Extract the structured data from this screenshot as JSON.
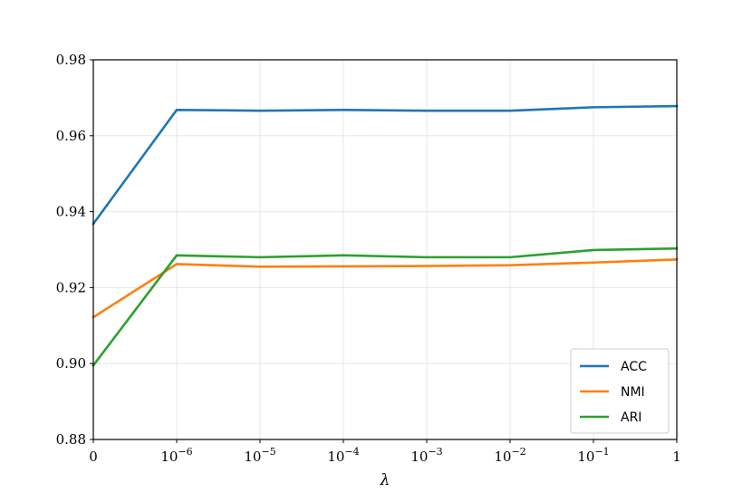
{
  "chart_data": {
    "type": "line",
    "xlabel": "λ",
    "ylabel": "",
    "x_ticks": [
      {
        "base": "0",
        "exp": ""
      },
      {
        "base": "10",
        "exp": "−6"
      },
      {
        "base": "10",
        "exp": "−5"
      },
      {
        "base": "10",
        "exp": "−4"
      },
      {
        "base": "10",
        "exp": "−3"
      },
      {
        "base": "10",
        "exp": "−2"
      },
      {
        "base": "10",
        "exp": "−1"
      },
      {
        "base": "1",
        "exp": ""
      }
    ],
    "ylim": [
      0.88,
      0.98
    ],
    "y_ticks": [
      0.88,
      0.9,
      0.92,
      0.94,
      0.96,
      0.98
    ],
    "grid": true,
    "legend_position": "lower-right",
    "series": [
      {
        "name": "ACC",
        "color": "#1f77b4",
        "values": [
          0.9368,
          0.9668,
          0.9666,
          0.9668,
          0.9666,
          0.9666,
          0.9675,
          0.9678
        ]
      },
      {
        "name": "NMI",
        "color": "#ff7f0e",
        "values": [
          0.9122,
          0.9262,
          0.9255,
          0.9256,
          0.9257,
          0.9259,
          0.9266,
          0.9274
        ]
      },
      {
        "name": "ARI",
        "color": "#2ca02c",
        "values": [
          0.8995,
          0.9285,
          0.928,
          0.9285,
          0.928,
          0.928,
          0.9299,
          0.9303
        ]
      }
    ]
  }
}
